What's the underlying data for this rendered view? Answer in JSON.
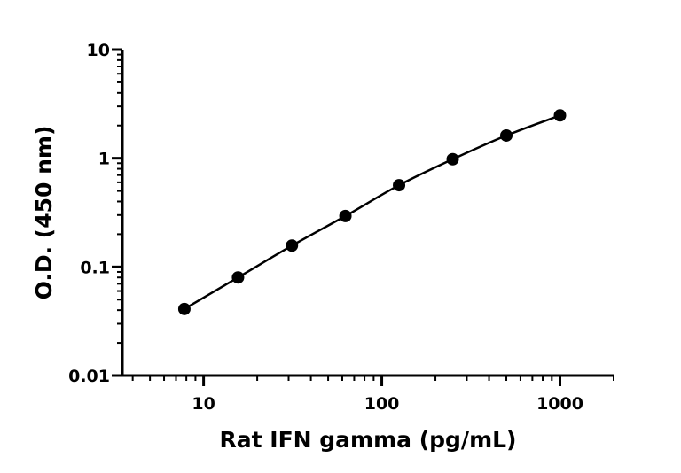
{
  "chart_data": {
    "type": "line",
    "xlabel": "Rat IFN gamma (pg/mL)",
    "ylabel": "O.D. (450 nm)",
    "x_scale": "log",
    "y_scale": "log",
    "xlim": [
      3.5,
      2000
    ],
    "ylim": [
      0.01,
      10
    ],
    "x_ticks": [
      10,
      100,
      1000
    ],
    "x_tick_labels": [
      "10",
      "100",
      "1000"
    ],
    "y_ticks": [
      0.01,
      0.1,
      1,
      10
    ],
    "y_tick_labels": [
      "0.01",
      "0.1",
      "1",
      "10"
    ],
    "grid": false,
    "legend": "none",
    "series": [
      {
        "x": [
          7.8,
          15.6,
          31.3,
          62.5,
          125,
          250,
          500,
          1000
        ],
        "y": [
          0.041,
          0.08,
          0.157,
          0.294,
          0.565,
          0.98,
          1.62,
          2.48
        ],
        "marker": "circle",
        "color": "#000000"
      }
    ]
  }
}
